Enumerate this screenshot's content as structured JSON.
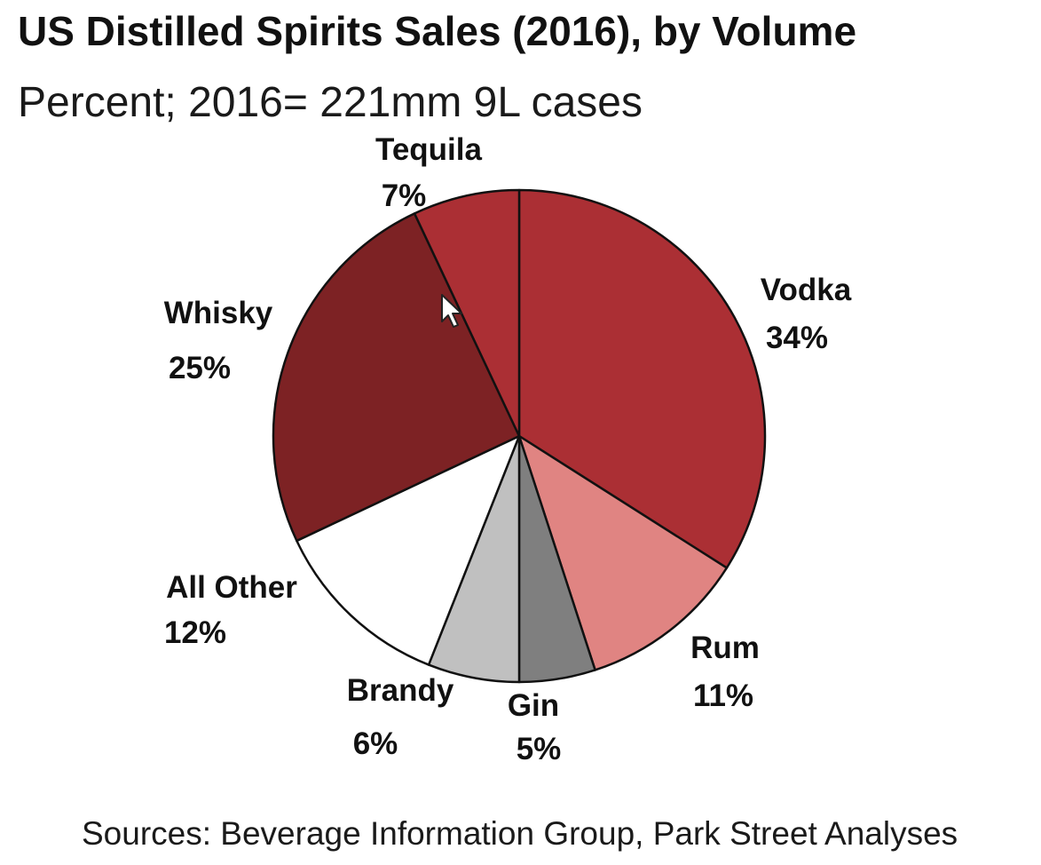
{
  "chart_data": {
    "type": "pie",
    "title": "US Distilled Spirits Sales (2016), by Volume",
    "subtitle": "Percent; 2016= 221mm 9L cases",
    "slices": [
      {
        "label": "Vodka",
        "value": 34,
        "value_label": "34%",
        "color": "#ab2f34"
      },
      {
        "label": "Rum",
        "value": 11,
        "value_label": "11%",
        "color": "#e08482"
      },
      {
        "label": "Gin",
        "value": 5,
        "value_label": "5%",
        "color": "#7f7f7f"
      },
      {
        "label": "Brandy",
        "value": 6,
        "value_label": "6%",
        "color": "#c0c0c0"
      },
      {
        "label": "All Other",
        "value": 12,
        "value_label": "12%",
        "color": "#ffffff"
      },
      {
        "label": "Whisky",
        "value": 25,
        "value_label": "25%",
        "color": "#7d2224"
      },
      {
        "label": "Tequila",
        "value": 7,
        "value_label": "7%",
        "color": "#ab2f34"
      }
    ]
  },
  "source": "Sources: Beverage Information Group, Park Street Analyses"
}
